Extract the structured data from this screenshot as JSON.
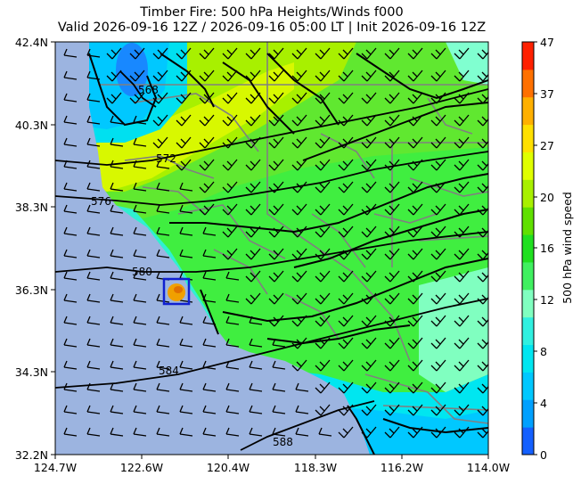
{
  "title": {
    "line1": "Timber Fire: 500 hPa Heights/Winds f000",
    "line2": "Valid 2026-09-16 12Z / 2026-09-16 05:00 LT | Init 2026-09-16 12Z"
  },
  "axes": {
    "y_ticks": [
      "42.4N",
      "40.3N",
      "38.3N",
      "36.3N",
      "34.3N",
      "32.2N"
    ],
    "x_ticks": [
      "124.7W",
      "122.6W",
      "120.4W",
      "118.3W",
      "116.2W",
      "114.0W"
    ]
  },
  "colorbar": {
    "label": "500 hPa wind speed",
    "ticks": [
      "0",
      "4",
      "8",
      "12",
      "16",
      "20",
      "27",
      "37",
      "47"
    ],
    "colors": [
      "#1460ff",
      "#00a0ff",
      "#00c8ff",
      "#00e6f0",
      "#30f0e0",
      "#80ffc0",
      "#40f060",
      "#20e020",
      "#60e000",
      "#a8f000",
      "#e0ff00",
      "#ffe000",
      "#ffb000",
      "#ff7000",
      "#ff2000"
    ]
  },
  "contours": {
    "labels": [
      "568",
      "572",
      "576",
      "580",
      "584",
      "588"
    ]
  },
  "fire_marker": {
    "name": "Timber Fire",
    "color": "#1020d0"
  }
}
